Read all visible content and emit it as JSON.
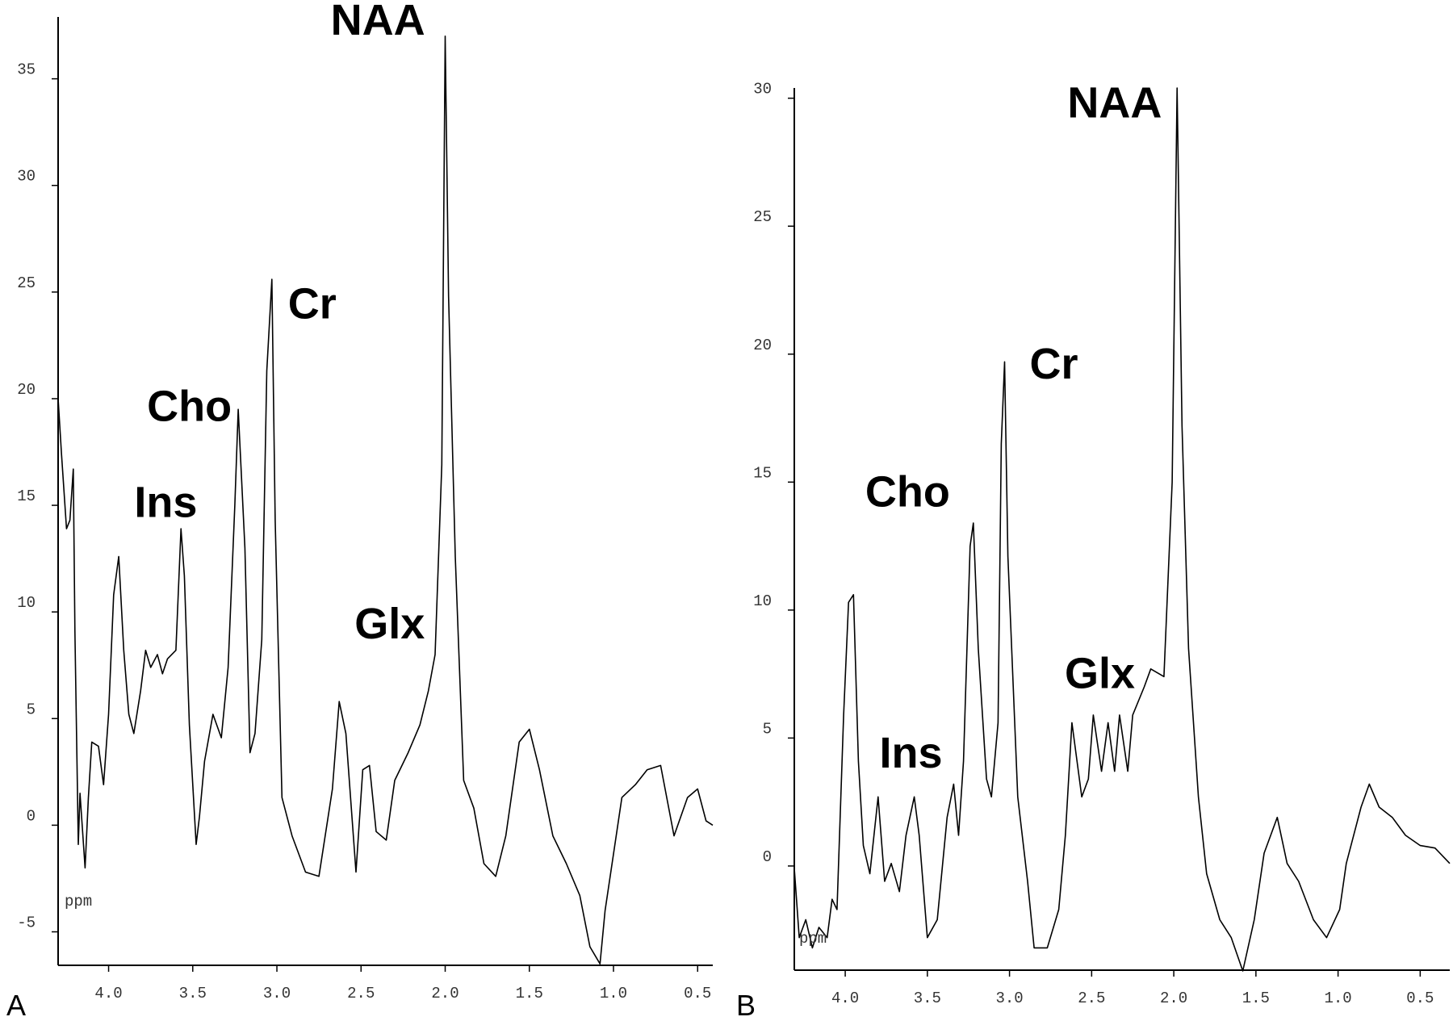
{
  "chart_data": [
    {
      "type": "line",
      "panel": "A",
      "unit_label": "ppm",
      "color": "#000000",
      "xlim": [
        4.3,
        0.41
      ],
      "ylim": [
        -6.57,
        37.9
      ],
      "xticks": [
        {
          "value": 4,
          "label": "4.0"
        },
        3.5,
        {
          "value": 3,
          "label": "3.0"
        },
        2.5,
        {
          "value": 2,
          "label": "2.0"
        },
        1.5,
        {
          "value": 1,
          "label": "1.0"
        },
        0.5
      ],
      "yticks": [
        -5,
        0,
        5,
        10,
        15,
        20,
        25,
        30,
        35
      ],
      "x": [
        4.3,
        4.28,
        4.25,
        4.23,
        4.21,
        4.2,
        4.18,
        4.17,
        4.14,
        4.12,
        4.1,
        4.06,
        4.03,
        4.0,
        3.97,
        3.94,
        3.91,
        3.88,
        3.85,
        3.81,
        3.78,
        3.75,
        3.71,
        3.68,
        3.65,
        3.6,
        3.57,
        3.55,
        3.52,
        3.48,
        3.46,
        3.43,
        3.38,
        3.33,
        3.29,
        3.25,
        3.23,
        3.19,
        3.16,
        3.13,
        3.09,
        3.06,
        3.03,
        3.01,
        2.97,
        2.91,
        2.83,
        2.75,
        2.67,
        2.63,
        2.59,
        2.53,
        2.49,
        2.45,
        2.41,
        2.35,
        2.3,
        2.22,
        2.15,
        2.1,
        2.06,
        2.02,
        2.0,
        1.98,
        1.94,
        1.89,
        1.83,
        1.77,
        1.7,
        1.64,
        1.56,
        1.5,
        1.44,
        1.36,
        1.28,
        1.2,
        1.14,
        1.08,
        1.05,
        0.95,
        0.87,
        0.8,
        0.72,
        0.64,
        0.56,
        0.5,
        0.45,
        0.41
      ],
      "values": [
        20.0,
        17.4,
        13.9,
        14.3,
        16.7,
        9.1,
        -0.9,
        1.5,
        -2.0,
        1.3,
        3.9,
        3.7,
        1.9,
        5.2,
        10.8,
        12.6,
        8.2,
        5.2,
        4.3,
        6.3,
        8.2,
        7.4,
        8.0,
        7.1,
        7.8,
        8.2,
        13.9,
        11.7,
        4.7,
        -0.9,
        0.4,
        3.0,
        5.2,
        4.1,
        7.4,
        15.0,
        19.5,
        13.0,
        3.4,
        4.3,
        8.7,
        21.3,
        25.6,
        14.3,
        1.3,
        -0.5,
        -2.2,
        -2.4,
        1.7,
        5.8,
        4.3,
        -2.2,
        2.6,
        2.8,
        -0.3,
        -0.7,
        2.1,
        3.4,
        4.7,
        6.3,
        8.0,
        16.9,
        37.0,
        24.8,
        12.6,
        2.1,
        0.8,
        -1.8,
        -2.4,
        -0.5,
        3.9,
        4.5,
        2.6,
        -0.5,
        -1.8,
        -3.3,
        -5.7,
        -6.5,
        -4.0,
        1.3,
        1.9,
        2.6,
        2.8,
        -0.5,
        1.3,
        1.7,
        0.2,
        0.0
      ],
      "annotations": [
        {
          "text": "NAA",
          "x": 2.4,
          "y": 37.6
        },
        {
          "text": "Cr",
          "x": 2.79,
          "y": 24.3
        },
        {
          "text": "Cho",
          "x": 3.52,
          "y": 19.5
        },
        {
          "text": "Ins",
          "x": 3.66,
          "y": 15.0
        },
        {
          "text": "Glx",
          "x": 2.33,
          "y": 9.3
        }
      ]
    },
    {
      "type": "line",
      "panel": "B",
      "unit_label": "ppm",
      "color": "#000000",
      "xlim": [
        4.31,
        0.32
      ],
      "ylim": [
        -4.07,
        30.4
      ],
      "xticks": [
        {
          "value": 4,
          "label": "4.0"
        },
        3.5,
        {
          "value": 3,
          "label": "3.0"
        },
        2.5,
        {
          "value": 2,
          "label": "2.0"
        },
        1.5,
        {
          "value": 1,
          "label": "1.0"
        },
        0.5
      ],
      "yticks": [
        0,
        5,
        10,
        15,
        20,
        25,
        30
      ],
      "x": [
        4.31,
        4.28,
        4.24,
        4.2,
        4.16,
        4.11,
        4.08,
        4.05,
        4.01,
        3.98,
        3.95,
        3.92,
        3.89,
        3.85,
        3.8,
        3.76,
        3.72,
        3.67,
        3.63,
        3.58,
        3.55,
        3.5,
        3.44,
        3.38,
        3.34,
        3.31,
        3.28,
        3.24,
        3.22,
        3.19,
        3.14,
        3.11,
        3.07,
        3.05,
        3.03,
        3.01,
        2.95,
        2.89,
        2.85,
        2.77,
        2.7,
        2.66,
        2.62,
        2.56,
        2.52,
        2.49,
        2.44,
        2.4,
        2.36,
        2.33,
        2.28,
        2.25,
        2.18,
        2.14,
        2.06,
        2.01,
        1.98,
        1.95,
        1.91,
        1.85,
        1.8,
        1.72,
        1.65,
        1.58,
        1.51,
        1.45,
        1.37,
        1.31,
        1.24,
        1.15,
        1.07,
        0.99,
        0.95,
        0.86,
        0.81,
        0.75,
        0.67,
        0.59,
        0.5,
        0.41,
        0.32
      ],
      "values": [
        -0.1,
        -2.8,
        -2.1,
        -3.2,
        -2.4,
        -2.8,
        -1.3,
        -1.7,
        5.9,
        10.3,
        10.6,
        4.1,
        0.8,
        -0.3,
        2.7,
        -0.6,
        0.1,
        -1.0,
        1.2,
        2.7,
        1.2,
        -2.8,
        -2.1,
        1.9,
        3.2,
        1.2,
        4.1,
        12.5,
        13.4,
        8.5,
        3.4,
        2.7,
        5.6,
        16.5,
        19.7,
        12.1,
        2.7,
        -0.6,
        -3.2,
        -3.2,
        -1.7,
        1.2,
        5.6,
        2.7,
        3.4,
        5.9,
        3.7,
        5.6,
        3.7,
        5.9,
        3.7,
        5.9,
        7.0,
        7.7,
        7.4,
        15.0,
        30.4,
        17.2,
        8.5,
        2.7,
        -0.3,
        -2.1,
        -2.8,
        -4.1,
        -2.1,
        0.5,
        1.9,
        0.1,
        -0.6,
        -2.1,
        -2.8,
        -1.7,
        0.1,
        2.3,
        3.2,
        2.3,
        1.9,
        1.2,
        0.8,
        0.7,
        0.1
      ],
      "annotations": [
        {
          "text": "NAA",
          "x": 2.36,
          "y": 29.7
        },
        {
          "text": "Cr",
          "x": 2.73,
          "y": 19.5
        },
        {
          "text": "Cho",
          "x": 3.62,
          "y": 14.5
        },
        {
          "text": "Ins",
          "x": 3.6,
          "y": 4.3
        },
        {
          "text": "Glx",
          "x": 2.45,
          "y": 7.4
        }
      ]
    }
  ]
}
